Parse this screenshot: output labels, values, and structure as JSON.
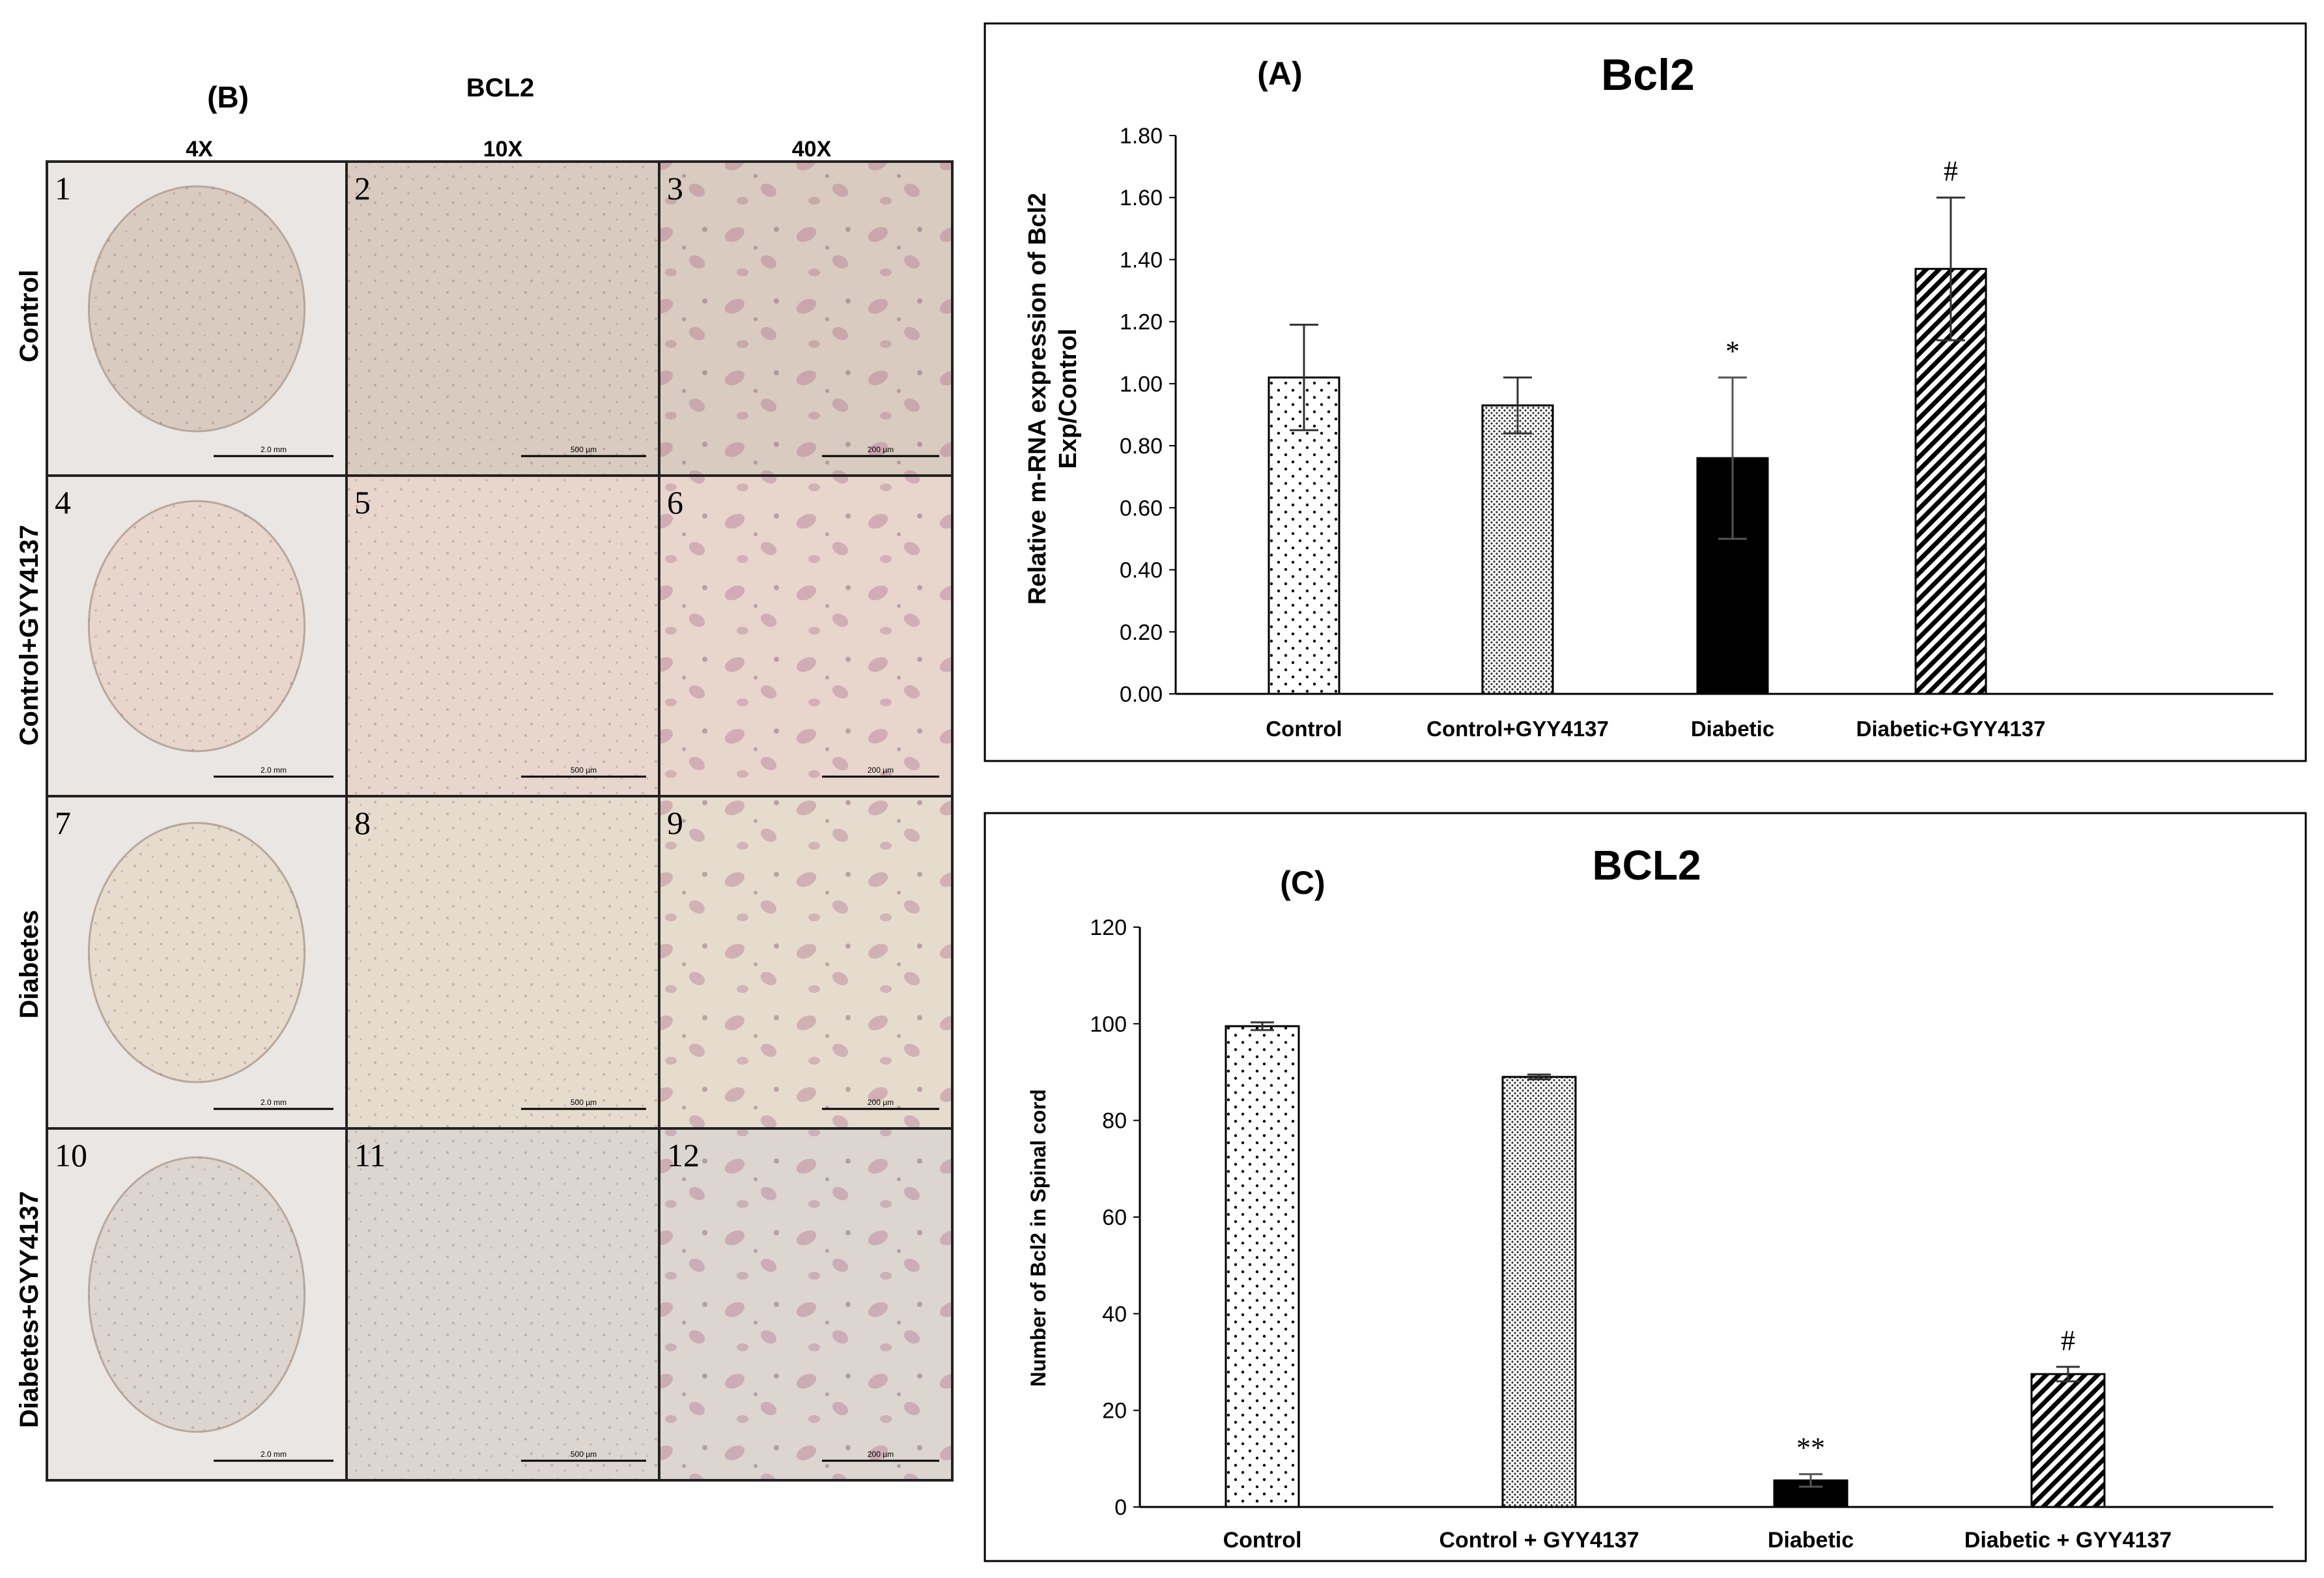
{
  "panel_b": {
    "label": "(B)",
    "stain": "BCL2",
    "magnifications": [
      "4X",
      "10X",
      "40X"
    ],
    "rows": [
      "Control",
      "Control+GYY4137",
      "Diabetes",
      "Diabetes+GYY4137"
    ],
    "cell_numbers": [
      "1",
      "2",
      "3",
      "4",
      "5",
      "6",
      "7",
      "8",
      "9",
      "10",
      "11",
      "12"
    ],
    "scale_labels": [
      "2.0 mm",
      "500 µm",
      "200 µm",
      "2.0 mm",
      "500 µm",
      "200 µm",
      "2.0 mm",
      "500 µm",
      "200 µm",
      "2.0 mm",
      "500 µm",
      "200 µm"
    ],
    "tint": [
      "#d9cbbf",
      "#e8d6cd",
      "#e6dccd",
      "#dcd5d0"
    ]
  },
  "chart_data": [
    {
      "type": "bar",
      "panel_label": "(A)",
      "title": "Bcl2",
      "ylabel": "Relative m-RNA expression of Bcl2",
      "ylabel2": "Exp/Control",
      "categories": [
        "Control",
        "Control+GYY4137",
        "Diabetic",
        "Diabetic+GYY4137"
      ],
      "values": [
        1.02,
        0.93,
        0.76,
        1.37
      ],
      "errors": [
        0.17,
        0.09,
        0.26,
        0.23
      ],
      "annotations": [
        "",
        "",
        "*",
        "#"
      ],
      "patterns": [
        "dots",
        "fine-dots",
        "solid",
        "diagonal"
      ],
      "ylim": [
        0,
        1.8
      ],
      "yticks": [
        "0.00",
        "0.20",
        "0.40",
        "0.60",
        "0.80",
        "1.00",
        "1.20",
        "1.40",
        "1.60",
        "1.80"
      ],
      "grid": false,
      "legend": "none"
    },
    {
      "type": "bar",
      "panel_label": "(C)",
      "title": "BCL2",
      "ylabel": "Number of Bcl2 in Spinal cord",
      "categories": [
        "Control",
        "Control + GYY4137",
        "Diabetic",
        "Diabetic + GYY4137"
      ],
      "values": [
        99.5,
        89,
        5.5,
        27.5
      ],
      "errors": [
        0.8,
        0.5,
        1.3,
        1.5
      ],
      "annotations": [
        "",
        "",
        "**",
        "#"
      ],
      "patterns": [
        "dots",
        "fine-dots",
        "solid",
        "diagonal"
      ],
      "ylim": [
        0,
        120
      ],
      "yticks": [
        "0",
        "20",
        "40",
        "60",
        "80",
        "100",
        "120"
      ],
      "grid": false,
      "legend": "none"
    }
  ]
}
